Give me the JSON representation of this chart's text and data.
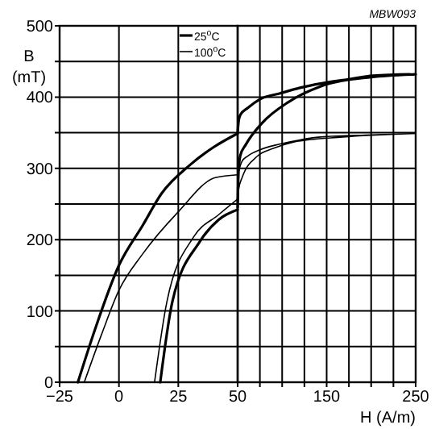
{
  "chart_data": [
    {
      "type": "line",
      "ylabel": "B (mT)",
      "xlim": [
        -25,
        50
      ],
      "xticks": [
        -25,
        0,
        25,
        50
      ],
      "ylim": [
        0,
        500
      ],
      "yticks": [
        0,
        {
          "value": 50,
          "label": null
        },
        100,
        {
          "value": 150,
          "label": null
        },
        200,
        {
          "value": 250,
          "label": null
        },
        300,
        {
          "value": 350,
          "label": null
        },
        400,
        {
          "value": 450,
          "label": null
        },
        500
      ],
      "grid": true,
      "legend": "top right",
      "line_style": "solid",
      "series": [
        {
          "name": "25$^{o}$C",
          "color": "#000000",
          "x": [
            -17.3,
            -10,
            0,
            10,
            18,
            30,
            40,
            50,
            null,
            17.4,
            22.5,
            34,
            42,
            50
          ],
          "values": [
            0,
            75,
            164,
            220,
            265,
            305,
            330,
            349,
            null,
            0,
            113,
            197,
            228,
            242
          ]
        },
        {
          "name": "100$^{o}$C",
          "color": "#000000",
          "x": [
            -14.6,
            -7,
            0,
            10,
            24.7,
            40.6,
            50,
            null,
            15,
            20.2,
            31.5,
            42,
            50
          ],
          "values": [
            0,
            70,
            129,
            180,
            238,
            287,
            291,
            null,
            0,
            113,
            204,
            235,
            257
          ]
        }
      ]
    },
    {
      "type": "line",
      "xlabel": "H (A/m)",
      "annotations": [
        "MBW093"
      ],
      "xlim": [
        50,
        250
      ],
      "xticks": [
        {
          "value": 75,
          "label": null
        },
        {
          "value": 100,
          "label": null
        },
        {
          "value": 125,
          "label": null
        },
        150,
        {
          "value": 175,
          "label": null
        },
        {
          "value": 200,
          "label": null
        },
        {
          "value": 225,
          "label": null
        },
        250
      ],
      "ylim": [
        0,
        500
      ],
      "yticks": [
        0,
        {
          "value": 50,
          "label": null
        },
        100,
        {
          "value": 150,
          "label": null
        },
        200,
        {
          "value": 250,
          "label": null
        },
        300,
        {
          "value": 350,
          "label": null
        },
        400,
        {
          "value": 450,
          "label": null
        },
        500
      ],
      "grid": true,
      "tick_labels": "x",
      "line_style": "solid",
      "series": [
        {
          "color": "#000000",
          "x": [
            50,
            51,
            53,
            61.5,
            75,
            97,
            120,
            143,
            175,
            202,
            250,
            null,
            50,
            51,
            53,
            59,
            77,
            107,
            143,
            200,
            250
          ],
          "values": [
            350,
            365,
            375,
            385,
            397,
            405,
            413,
            419,
            425,
            430,
            432,
            null,
            245,
            295,
            318,
            333,
            363,
            393,
            415,
            428,
            432
          ]
        },
        {
          "color": "#000000",
          "x": [
            50,
            52,
            55,
            61,
            75,
            97,
            120,
            143,
            200,
            250,
            null,
            50,
            51,
            55,
            72,
            90,
            113,
            168,
            250
          ],
          "values": [
            291,
            300,
            310,
            317,
            326,
            334,
            340,
            344,
            347,
            349,
            null,
            257,
            270,
            287,
            317,
            328,
            337,
            344,
            349
          ]
        }
      ]
    }
  ]
}
